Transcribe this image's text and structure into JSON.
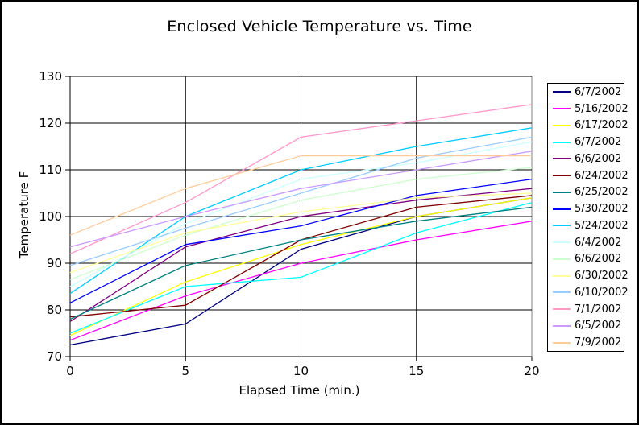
{
  "window": {
    "background": "#FFFFFF",
    "border_color": "#000000"
  },
  "chart_data": {
    "type": "line",
    "title": "Enclosed Vehicle Temperature vs. Time",
    "xlabel": "Elapsed Time (min.)",
    "ylabel": "Temperature F",
    "xlim": [
      0,
      20
    ],
    "ylim": [
      70,
      130
    ],
    "xticks": [
      0,
      5,
      10,
      15,
      20
    ],
    "yticks": [
      70,
      80,
      90,
      100,
      110,
      120,
      130
    ],
    "grid": true,
    "legend_position": "right",
    "gridline_color": "#000000",
    "plot_border_color": "#808080",
    "x": [
      0,
      5,
      10,
      15,
      20
    ],
    "series": [
      {
        "name": "6/7/2002",
        "color": "#000080",
        "values": [
          72.5,
          77,
          93,
          100,
          104
        ]
      },
      {
        "name": "5/16/2002",
        "color": "#FF00FF",
        "values": [
          73.5,
          83,
          90,
          95,
          99
        ]
      },
      {
        "name": "6/17/2002",
        "color": "#FFFF00",
        "values": [
          74.5,
          86,
          94,
          100,
          104
        ]
      },
      {
        "name": "6/7/2002",
        "color": "#00FFFF",
        "values": [
          75,
          85,
          87,
          96.5,
          103
        ]
      },
      {
        "name": "6/6/2002",
        "color": "#800080",
        "values": [
          77.5,
          93.5,
          100,
          103.5,
          106
        ]
      },
      {
        "name": "6/24/2002",
        "color": "#800000",
        "values": [
          78.5,
          81,
          95,
          102,
          104.5
        ]
      },
      {
        "name": "6/25/2002",
        "color": "#008080",
        "values": [
          78,
          89.5,
          95,
          99,
          102
        ]
      },
      {
        "name": "5/30/2002",
        "color": "#0000FF",
        "values": [
          81.5,
          94,
          98,
          104.5,
          108
        ]
      },
      {
        "name": "5/24/2002",
        "color": "#00CCFF",
        "values": [
          83.5,
          100,
          110,
          115,
          119
        ]
      },
      {
        "name": "6/4/2002",
        "color": "#CCFFFF",
        "values": [
          85,
          98.5,
          108,
          111.5,
          116
        ]
      },
      {
        "name": "6/6/2002",
        "color": "#CCFFCC",
        "values": [
          86.5,
          96,
          103.5,
          108,
          110.5
        ]
      },
      {
        "name": "6/30/2002",
        "color": "#FFFF99",
        "values": [
          88,
          96.5,
          101,
          104,
          105
        ]
      },
      {
        "name": "6/10/2002",
        "color": "#99CCFF",
        "values": [
          89.5,
          97.5,
          105,
          112.5,
          117
        ]
      },
      {
        "name": "7/1/2002",
        "color": "#FF99CC",
        "values": [
          92,
          103,
          117,
          120.5,
          124
        ]
      },
      {
        "name": "6/5/2002",
        "color": "#CC99FF",
        "values": [
          93.5,
          100,
          106,
          110,
          114
        ]
      },
      {
        "name": "7/9/2002",
        "color": "#FFCC99",
        "values": [
          96,
          106,
          113,
          113,
          113
        ]
      }
    ]
  }
}
